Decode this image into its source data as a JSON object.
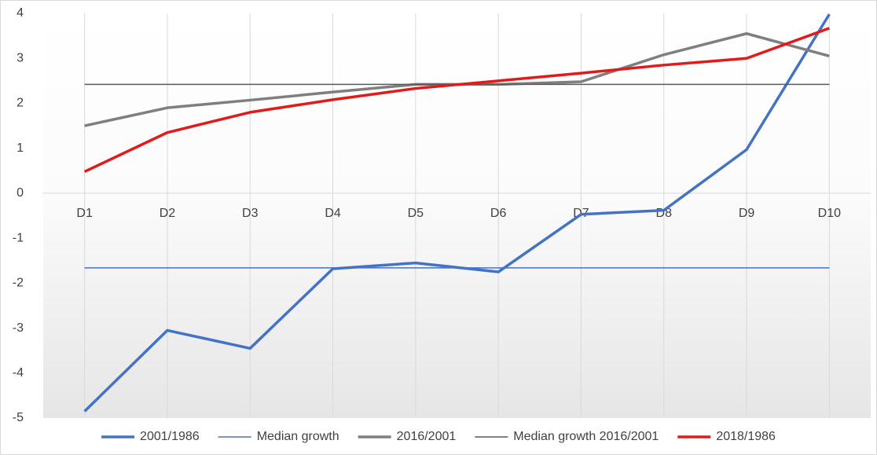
{
  "chart_data": {
    "type": "line",
    "categories": [
      "D1",
      "D2",
      "D3",
      "D4",
      "D5",
      "D6",
      "D7",
      "D8",
      "D9",
      "D10"
    ],
    "series": [
      {
        "name": "2001/1986",
        "color": "#4472c4",
        "width": 3.5,
        "values": [
          -4.85,
          -3.05,
          -3.45,
          -1.68,
          -1.55,
          -1.75,
          -0.47,
          -0.38,
          0.97,
          3.98
        ]
      },
      {
        "name": "Median growth",
        "color": "#4472c4",
        "width": 1.5,
        "values": [
          -1.66,
          -1.66,
          -1.66,
          -1.66,
          -1.66,
          -1.66,
          -1.66,
          -1.66,
          -1.66,
          -1.66
        ]
      },
      {
        "name": "2016/2001",
        "color": "#7f7f7f",
        "width": 3.5,
        "values": [
          1.5,
          1.9,
          2.07,
          2.25,
          2.42,
          2.42,
          2.48,
          3.08,
          3.55,
          3.05
        ]
      },
      {
        "name": "Median growth 2016/2001",
        "color": "#595959",
        "width": 1.5,
        "values": [
          2.42,
          2.42,
          2.42,
          2.42,
          2.42,
          2.42,
          2.42,
          2.42,
          2.42,
          2.42
        ]
      },
      {
        "name": "2018/1986",
        "color": "#e31a1c",
        "width": 3.5,
        "values": [
          0.48,
          1.35,
          1.8,
          2.08,
          2.33,
          2.5,
          2.67,
          2.85,
          3.0,
          3.67
        ]
      }
    ],
    "ylim": [
      -5,
      4
    ],
    "yticks": [
      -5,
      -4,
      -3,
      -2,
      -1,
      0,
      1,
      2,
      3,
      4
    ],
    "grid": true,
    "legend": "bottom"
  }
}
